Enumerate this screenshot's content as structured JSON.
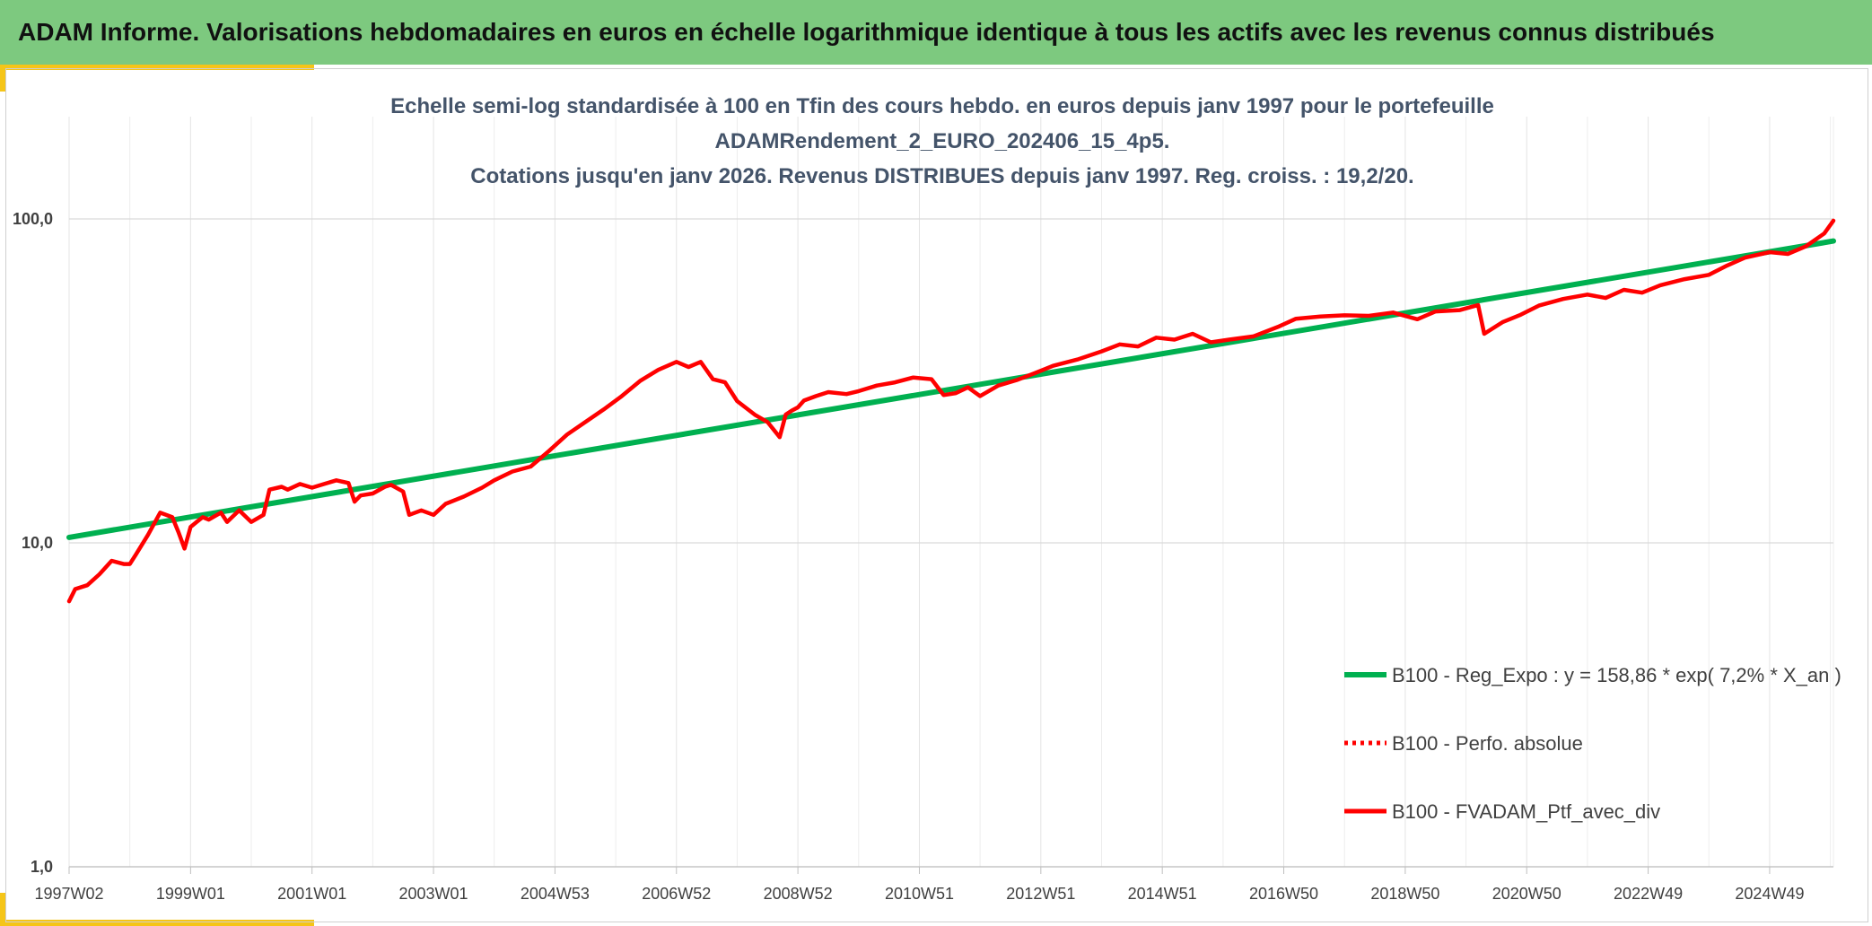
{
  "header": {
    "title": "ADAM Informe. Valorisations hebdomadaires en euros en échelle logarithmique identique à tous les actifs avec les revenus connus distribués"
  },
  "colors": {
    "banner": "#7dc97f",
    "accent": "#f5c518",
    "regression": "#00b050",
    "portfolio": "#ff0000"
  },
  "chart_data": {
    "type": "line",
    "y_scale": "log",
    "ylim": [
      1,
      100
    ],
    "y_ticks": [
      {
        "value": 100,
        "label": "100,0"
      },
      {
        "value": 10,
        "label": "10,0"
      },
      {
        "value": 1,
        "label": "1,0"
      }
    ],
    "x_range_years": [
      1997.0,
      2026.05
    ],
    "x_ticks": [
      {
        "year": 1997.0,
        "label": "1997W02"
      },
      {
        "year": 1999.0,
        "label": "1999W01"
      },
      {
        "year": 2001.0,
        "label": "2001W01"
      },
      {
        "year": 2003.0,
        "label": "2003W01"
      },
      {
        "year": 2005.0,
        "label": "2004W53"
      },
      {
        "year": 2007.0,
        "label": "2006W52"
      },
      {
        "year": 2009.0,
        "label": "2008W52"
      },
      {
        "year": 2011.0,
        "label": "2010W51"
      },
      {
        "year": 2013.0,
        "label": "2012W51"
      },
      {
        "year": 2015.0,
        "label": "2014W51"
      },
      {
        "year": 2017.0,
        "label": "2016W50"
      },
      {
        "year": 2019.0,
        "label": "2018W50"
      },
      {
        "year": 2021.0,
        "label": "2020W50"
      },
      {
        "year": 2023.0,
        "label": "2022W49"
      },
      {
        "year": 2025.0,
        "label": "2024W49"
      }
    ],
    "title_lines": [
      "Echelle semi-log standardisée à 100 en Tfin des cours hebdo. en euros depuis janv 1997 pour le portefeuille",
      "ADAMRendement_2_EURO_202406_15_4p5.",
      "Cotations jusqu'en janv 2026. Revenus DISTRIBUES depuis janv 1997. Reg. croiss. : 19,2/20."
    ],
    "legend_position": "right",
    "legend": [
      {
        "name": "B100 - Reg_Expo : y = 158,86 * exp( 7,2% *  X_an )",
        "style": "solid-green"
      },
      {
        "name": "B100 - Perfo. absolue",
        "style": "dotted-red"
      },
      {
        "name": "B100 - FVADAM_Ptf_avec_div",
        "style": "solid-red"
      }
    ],
    "series": [
      {
        "name": "B100 - Reg_Expo : y = 158,86 * exp( 7,2% *  X_an )",
        "x": [
          1997.0,
          2026.05
        ],
        "y": [
          10.4,
          85.5
        ]
      },
      {
        "name": "B100 - FVADAM_Ptf_avec_div",
        "x": [
          1997.0,
          1997.1,
          1997.3,
          1997.5,
          1997.7,
          1997.9,
          1998.0,
          1998.1,
          1998.3,
          1998.5,
          1998.7,
          1998.8,
          1998.9,
          1999.0,
          1999.1,
          1999.2,
          1999.3,
          1999.5,
          1999.6,
          1999.8,
          2000.0,
          2000.2,
          2000.3,
          2000.5,
          2000.6,
          2000.8,
          2001.0,
          2001.2,
          2001.4,
          2001.6,
          2001.7,
          2001.8,
          2002.0,
          2002.2,
          2002.3,
          2002.5,
          2002.6,
          2002.8,
          2002.9,
          2003.0,
          2003.2,
          2003.5,
          2003.8,
          2004.0,
          2004.3,
          2004.6,
          2004.9,
          2005.2,
          2005.5,
          2005.8,
          2006.1,
          2006.4,
          2006.7,
          2007.0,
          2007.2,
          2007.4,
          2007.6,
          2007.8,
          2008.0,
          2008.3,
          2008.5,
          2008.7,
          2008.8,
          2008.9,
          2009.0,
          2009.1,
          2009.3,
          2009.5,
          2009.8,
          2010.0,
          2010.3,
          2010.6,
          2010.9,
          2011.2,
          2011.4,
          2011.6,
          2011.8,
          2012.0,
          2012.3,
          2012.6,
          2012.9,
          2013.2,
          2013.6,
          2014.0,
          2014.3,
          2014.6,
          2014.9,
          2015.2,
          2015.5,
          2015.8,
          2016.1,
          2016.5,
          2016.9,
          2017.2,
          2017.6,
          2018.0,
          2018.4,
          2018.8,
          2019.2,
          2019.5,
          2019.9,
          2020.1,
          2020.2,
          2020.3,
          2020.6,
          2020.9,
          2021.2,
          2021.6,
          2022.0,
          2022.3,
          2022.6,
          2022.9,
          2023.2,
          2023.6,
          2024.0,
          2024.3,
          2024.6,
          2025.0,
          2025.3,
          2025.6,
          2025.9,
          2026.05
        ],
        "y": [
          6.6,
          7.2,
          7.4,
          8.0,
          8.8,
          8.6,
          8.6,
          9.2,
          10.6,
          12.4,
          12.0,
          10.8,
          9.6,
          11.2,
          11.6,
          12.0,
          11.8,
          12.4,
          11.6,
          12.6,
          11.6,
          12.2,
          14.6,
          14.9,
          14.6,
          15.2,
          14.8,
          15.2,
          15.6,
          15.3,
          13.4,
          14.0,
          14.2,
          14.9,
          15.1,
          14.4,
          12.2,
          12.6,
          12.4,
          12.2,
          13.2,
          13.9,
          14.8,
          15.6,
          16.6,
          17.2,
          19.2,
          21.6,
          23.6,
          25.8,
          28.4,
          31.6,
          34.2,
          36.2,
          34.9,
          36.2,
          32.0,
          31.3,
          27.4,
          24.8,
          23.6,
          21.2,
          24.9,
          25.6,
          26.2,
          27.5,
          28.4,
          29.2,
          28.8,
          29.4,
          30.6,
          31.3,
          32.4,
          32.0,
          28.6,
          29.0,
          30.2,
          28.4,
          30.6,
          31.8,
          33.4,
          35.2,
          36.8,
          39.0,
          41.0,
          40.4,
          43.0,
          42.4,
          44.2,
          41.6,
          42.4,
          43.4,
          46.4,
          49.2,
          50.0,
          50.4,
          50.2,
          51.4,
          49.0,
          51.8,
          52.3,
          53.6,
          54.2,
          44.2,
          48.0,
          50.6,
          54.0,
          56.6,
          58.4,
          57.0,
          60.4,
          59.2,
          62.4,
          65.2,
          67.2,
          71.8,
          76.0,
          79.0,
          78.0,
          82.4,
          90.2,
          98.8
        ]
      }
    ]
  }
}
